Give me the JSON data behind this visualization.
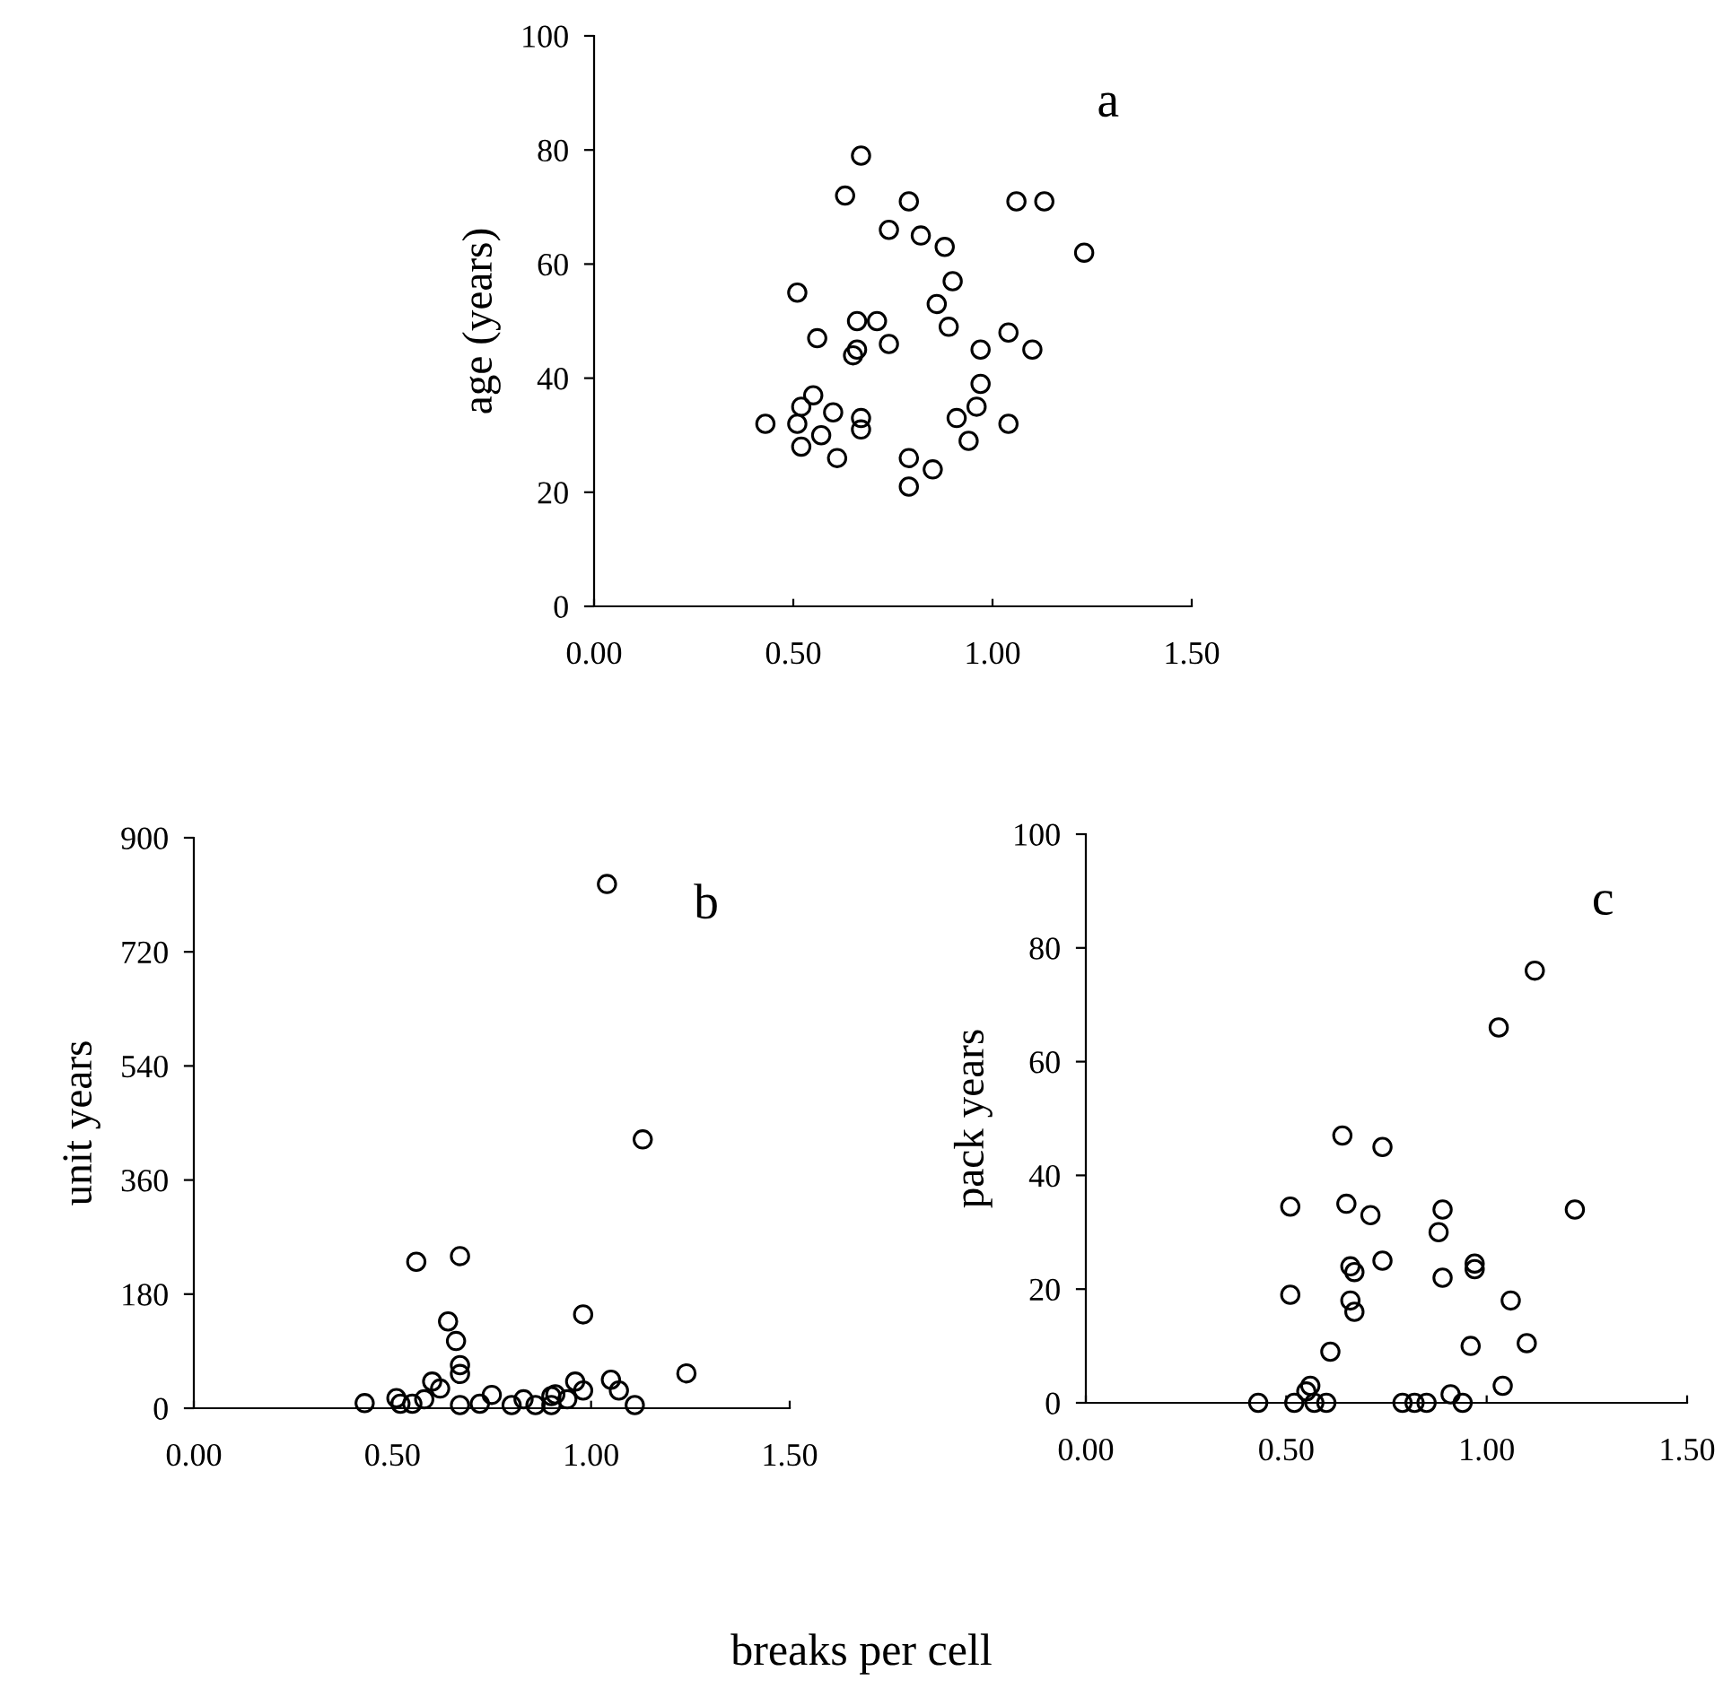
{
  "chart_data": [
    {
      "type": "scatter",
      "ylabel": "age (years)",
      "annotations": [
        "a"
      ],
      "marker": "circle",
      "grid": false,
      "xlim": [
        0,
        1.5
      ],
      "xticks": [
        {
          "value": 0,
          "label": "0.00"
        },
        {
          "value": 0.5,
          "label": "0.50"
        },
        {
          "value": 1.0,
          "label": "1.00"
        },
        {
          "value": 1.5,
          "label": "1.50"
        }
      ],
      "ylim": [
        0,
        100
      ],
      "yticks": [
        0,
        20,
        40,
        60,
        80,
        100
      ],
      "series": [
        {
          "color": "#000000",
          "x": [
            0.43,
            0.51,
            0.52,
            0.51,
            0.52,
            0.55,
            0.56,
            0.57,
            0.6,
            0.61,
            0.63,
            0.65,
            0.66,
            0.66,
            0.67,
            0.67,
            0.67,
            0.71,
            0.74,
            0.74,
            0.79,
            0.79,
            0.79,
            0.82,
            0.85,
            0.86,
            0.88,
            0.89,
            0.9,
            0.91,
            0.94,
            0.96,
            0.97,
            0.97,
            1.04,
            1.04,
            1.06,
            1.1,
            1.13,
            1.23
          ],
          "values": [
            32,
            55,
            35,
            32,
            28,
            37,
            47,
            30,
            34,
            26,
            72,
            44,
            45,
            50,
            79,
            33,
            31,
            50,
            46,
            66,
            71,
            26,
            21,
            65,
            24,
            53,
            63,
            49,
            57,
            33,
            29,
            35,
            39,
            45,
            32,
            48,
            71,
            45,
            71,
            62
          ]
        }
      ]
    },
    {
      "type": "scatter",
      "ylabel": "unit years",
      "xlabel": "breaks per cell",
      "annotations": [
        "b"
      ],
      "marker": "circle",
      "grid": false,
      "xlim": [
        0,
        1.5
      ],
      "xticks": [
        {
          "value": 0,
          "label": "0.00"
        },
        {
          "value": 0.5,
          "label": "0.50"
        },
        {
          "value": 1.0,
          "label": "1.00"
        },
        {
          "value": 1.5,
          "label": "1.50"
        }
      ],
      "ylim": [
        0,
        900
      ],
      "yticks": [
        0,
        180,
        360,
        540,
        720,
        900
      ],
      "series": [
        {
          "color": "#000000",
          "x": [
            0.43,
            0.51,
            0.52,
            0.55,
            0.56,
            0.58,
            0.6,
            0.62,
            0.64,
            0.66,
            0.67,
            0.67,
            0.67,
            0.67,
            0.72,
            0.75,
            0.8,
            0.83,
            0.86,
            0.9,
            0.9,
            0.91,
            0.94,
            0.96,
            0.98,
            0.98,
            1.04,
            1.05,
            1.07,
            1.11,
            1.13,
            1.24
          ],
          "values": [
            8,
            16,
            7,
            7,
            231,
            14,
            42,
            31,
            137,
            106,
            68,
            54,
            240,
            5,
            7,
            21,
            5,
            14,
            5,
            19,
            5,
            22,
            14,
            42,
            28,
            148,
            827,
            45,
            28,
            5,
            424,
            55
          ]
        }
      ]
    },
    {
      "type": "scatter",
      "ylabel": "pack years",
      "annotations": [
        "c"
      ],
      "marker": "circle",
      "grid": false,
      "xlim": [
        0,
        1.5
      ],
      "xticks": [
        {
          "value": 0,
          "label": "0.00"
        },
        {
          "value": 0.5,
          "label": "0.50"
        },
        {
          "value": 1.0,
          "label": "1.00"
        },
        {
          "value": 1.5,
          "label": "1.50"
        }
      ],
      "ylim": [
        0,
        100
      ],
      "yticks": [
        0,
        20,
        40,
        60,
        80,
        100
      ],
      "series": [
        {
          "color": "#000000",
          "x": [
            0.43,
            0.51,
            0.51,
            0.52,
            0.56,
            0.55,
            0.57,
            0.6,
            0.61,
            0.64,
            0.65,
            0.66,
            0.67,
            0.66,
            0.67,
            0.71,
            0.74,
            0.74,
            0.79,
            0.82,
            0.85,
            0.88,
            0.89,
            0.89,
            0.91,
            0.94,
            0.96,
            0.97,
            0.97,
            1.03,
            1.04,
            1.06,
            1.1,
            1.12,
            1.22
          ],
          "values": [
            0,
            34.5,
            19,
            0,
            3,
            2,
            0,
            0,
            9,
            47,
            35,
            24,
            23,
            18,
            16,
            33,
            45,
            25,
            0,
            0,
            0,
            30,
            34,
            22,
            1.5,
            0,
            10,
            23.5,
            24.5,
            66,
            3,
            18,
            10.5,
            76,
            34
          ]
        }
      ]
    }
  ]
}
